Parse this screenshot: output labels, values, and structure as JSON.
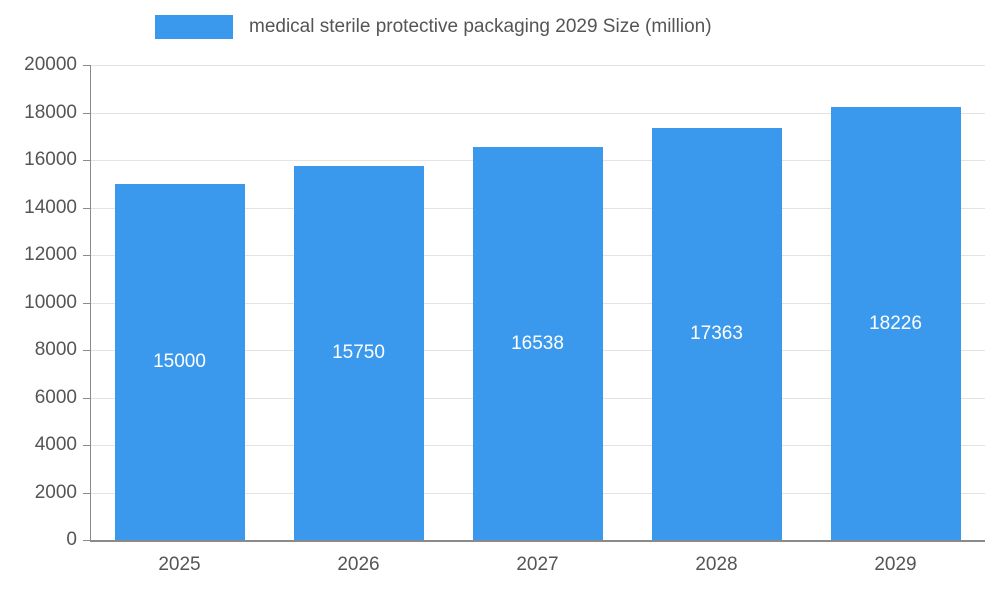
{
  "chart_data": {
    "type": "bar",
    "title": "medical sterile protective packaging 2029 Size (million)",
    "categories": [
      "2025",
      "2026",
      "2027",
      "2028",
      "2029"
    ],
    "values": [
      15000,
      15750,
      16538,
      17363,
      18226
    ],
    "xlabel": "",
    "ylabel": "",
    "ylim": [
      0,
      20000
    ],
    "ytick_step": 2000,
    "ytick_labels": [
      "0",
      "2000",
      "4000",
      "6000",
      "8000",
      "10000",
      "12000",
      "14000",
      "16000",
      "18000",
      "20000"
    ],
    "grid": true,
    "legend_position": "top",
    "colors": {
      "bar": "#3B99ED",
      "bar_label": "#ffffff",
      "axis": "#8a8a8a",
      "grid": "#e3e3e3",
      "text": "#555555"
    }
  }
}
